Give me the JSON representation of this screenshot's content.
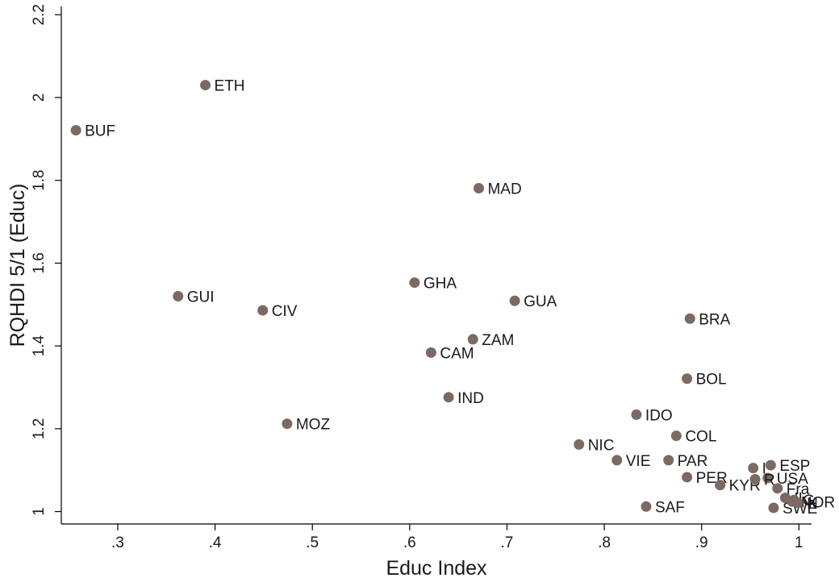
{
  "chart_data": {
    "type": "scatter",
    "title": "",
    "xlabel": "Educ Index",
    "ylabel": "RQHDI 5/1 (Educ)",
    "xlim": [
      0.242,
      1.013
    ],
    "ylim": [
      0.97,
      2.22
    ],
    "xticks": [
      0.3,
      0.4,
      0.5,
      0.6,
      0.7,
      0.8,
      0.9,
      1.0
    ],
    "xtick_labels": [
      ".3",
      ".4",
      ".5",
      ".6",
      ".7",
      ".8",
      ".9",
      "1"
    ],
    "yticks": [
      1.0,
      1.2,
      1.4,
      1.6,
      1.8,
      2.0,
      2.2
    ],
    "ytick_labels": [
      "1",
      "1.2",
      "1.4",
      "1.6",
      "1.8",
      "2",
      "2.2"
    ],
    "grid": false,
    "marker_color": "#7b6a62",
    "points": [
      {
        "label": "BUF",
        "x": 0.257,
        "y": 1.921
      },
      {
        "label": "ETH",
        "x": 0.39,
        "y": 2.03
      },
      {
        "label": "GUI",
        "x": 0.362,
        "y": 1.52
      },
      {
        "label": "CIV",
        "x": 0.449,
        "y": 1.486
      },
      {
        "label": "MOZ",
        "x": 0.474,
        "y": 1.212
      },
      {
        "label": "GHA",
        "x": 0.605,
        "y": 1.553
      },
      {
        "label": "MAD",
        "x": 0.671,
        "y": 1.781
      },
      {
        "label": "GUA",
        "x": 0.708,
        "y": 1.509
      },
      {
        "label": "ZAM",
        "x": 0.665,
        "y": 1.416
      },
      {
        "label": "CAM",
        "x": 0.622,
        "y": 1.384
      },
      {
        "label": "IND",
        "x": 0.64,
        "y": 1.276
      },
      {
        "label": "BRA",
        "x": 0.888,
        "y": 1.466
      },
      {
        "label": "BOL",
        "x": 0.885,
        "y": 1.321
      },
      {
        "label": "IDO",
        "x": 0.833,
        "y": 1.234
      },
      {
        "label": "COL",
        "x": 0.874,
        "y": 1.183
      },
      {
        "label": "NIC",
        "x": 0.774,
        "y": 1.162
      },
      {
        "label": "VIE",
        "x": 0.813,
        "y": 1.124
      },
      {
        "label": "PAR",
        "x": 0.866,
        "y": 1.124
      },
      {
        "label": "PER",
        "x": 0.885,
        "y": 1.083
      },
      {
        "label": "KYR",
        "x": 0.919,
        "y": 1.064
      },
      {
        "label": "SAF",
        "x": 0.843,
        "y": 1.012
      },
      {
        "label": "ESP",
        "x": 0.971,
        "y": 1.112
      },
      {
        "label": "I",
        "x": 0.953,
        "y": 1.105
      },
      {
        "label": "USA",
        "x": 0.968,
        "y": 1.081
      },
      {
        "label": "R",
        "x": 0.955,
        "y": 1.078
      },
      {
        "label": "Fra",
        "x": 0.978,
        "y": 1.056
      },
      {
        "label": "SWE",
        "x": 0.974,
        "y": 1.009
      },
      {
        "label": "IL",
        "x": 0.986,
        "y": 1.033
      },
      {
        "label": "NOR",
        "x": 0.993,
        "y": 1.024
      },
      {
        "label": "N",
        "x": 0.999,
        "y": 1.021
      },
      {
        "label": "G",
        "x": 0.995,
        "y": 1.028
      }
    ]
  }
}
